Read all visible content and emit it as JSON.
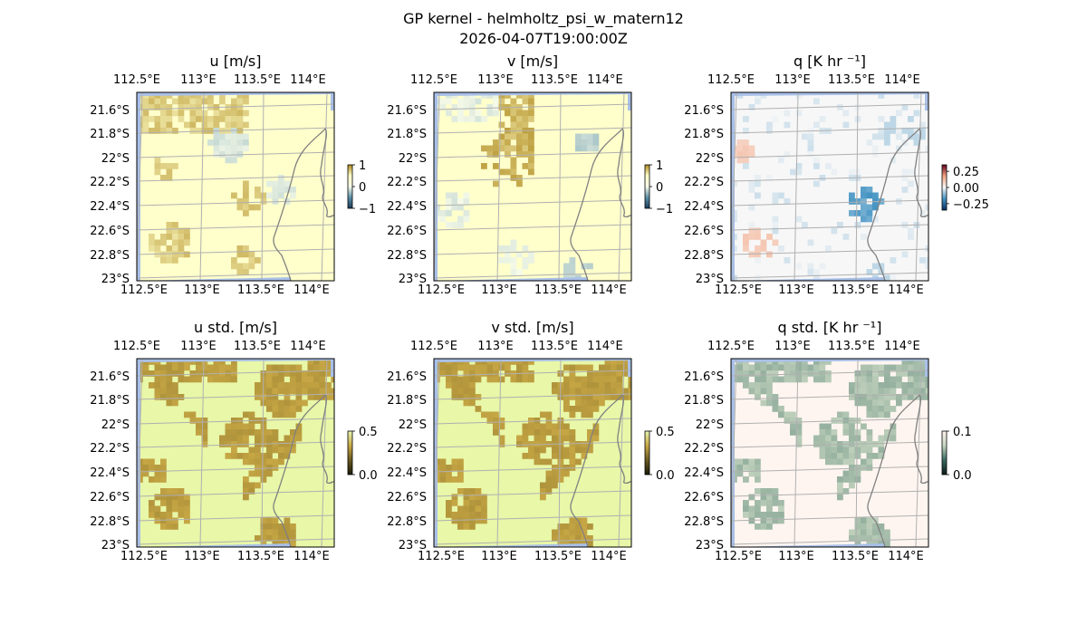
{
  "suptitle": {
    "line1": "GP kernel - helmholtz_psi_w_matern12",
    "line2": "2026-04-07T19:00:00Z"
  },
  "chart_data": [
    {
      "type": "heatmap",
      "title": "u [m/s]",
      "x_ticks": [
        "112.5°E",
        "113°E",
        "113.5°E",
        "114°E"
      ],
      "y_ticks": [
        "21.6°S",
        "21.8°S",
        "22°S",
        "22.2°S",
        "22.4°S",
        "22.6°S",
        "22.8°S",
        "23°S"
      ],
      "colorbar": {
        "range": [
          -1,
          1
        ],
        "ticks": [
          "1",
          "0",
          "−1"
        ]
      },
      "colormap": [
        "#1c3d5a",
        "#5b8fa8",
        "#f7fbe8",
        "#ffffc8",
        "#b08a20"
      ],
      "field_center": "#ffffcc"
    },
    {
      "type": "heatmap",
      "title": "v [m/s]",
      "x_ticks": [
        "112.5°E",
        "113°E",
        "113.5°E",
        "114°E"
      ],
      "y_ticks": [
        "21.6°S",
        "21.8°S",
        "22°S",
        "22.2°S",
        "22.4°S",
        "22.6°S",
        "22.8°S",
        "23°S"
      ],
      "colorbar": {
        "range": [
          -1,
          1
        ],
        "ticks": [
          "1",
          "0",
          "−1"
        ]
      },
      "colormap": [
        "#1c3d5a",
        "#5b8fa8",
        "#f7fbe8",
        "#ffffc8",
        "#b08a20"
      ],
      "field_center": "#ffffcc"
    },
    {
      "type": "heatmap",
      "title": "q [K hr ⁻¹]",
      "x_ticks": [
        "112.5°E",
        "113°E",
        "113.5°E",
        "114°E"
      ],
      "y_ticks": [
        "21.6°S",
        "21.8°S",
        "22°S",
        "22.2°S",
        "22.4°S",
        "22.6°S",
        "22.8°S",
        "23°S"
      ],
      "colorbar": {
        "range": [
          -0.35,
          0.35
        ],
        "ticks": [
          "0.25",
          "0.00",
          "−0.25"
        ]
      },
      "colormap": [
        "#053061",
        "#4393c3",
        "#f7f7f7",
        "#f4a582",
        "#67001f"
      ],
      "field_center": "#f7f7f7"
    },
    {
      "type": "heatmap",
      "title": "u std. [m/s]",
      "x_ticks": [
        "112.5°E",
        "113°E",
        "113.5°E",
        "114°E"
      ],
      "y_ticks": [
        "21.6°S",
        "21.8°S",
        "22°S",
        "22.2°S",
        "22.4°S",
        "22.6°S",
        "22.8°S",
        "23°S"
      ],
      "colorbar": {
        "range": [
          0,
          0.5
        ],
        "ticks": [
          "0.5",
          "0.0"
        ]
      },
      "colormap": [
        "#1a1a0a",
        "#6b5a20",
        "#c8a845",
        "#e8f5b0"
      ],
      "field_center": "#e8f7a8"
    },
    {
      "type": "heatmap",
      "title": "v std. [m/s]",
      "x_ticks": [
        "112.5°E",
        "113°E",
        "113.5°E",
        "114°E"
      ],
      "y_ticks": [
        "21.6°S",
        "21.8°S",
        "22°S",
        "22.2°S",
        "22.4°S",
        "22.6°S",
        "22.8°S",
        "23°S"
      ],
      "colorbar": {
        "range": [
          0,
          0.5
        ],
        "ticks": [
          "0.5",
          "0.0"
        ]
      },
      "colormap": [
        "#1a1a0a",
        "#6b5a20",
        "#c8a845",
        "#e8f5b0"
      ],
      "field_center": "#e8f7a8"
    },
    {
      "type": "heatmap",
      "title": "q std. [K hr ⁻¹]",
      "x_ticks": [
        "112.5°E",
        "113°E",
        "113.5°E",
        "114°E"
      ],
      "y_ticks": [
        "21.6°S",
        "21.8°S",
        "22°S",
        "22.2°S",
        "22.4°S",
        "22.6°S",
        "22.8°S",
        "23°S"
      ],
      "colorbar": {
        "range": [
          0,
          0.1
        ],
        "ticks": [
          "0.1",
          "0.0"
        ]
      },
      "colormap": [
        "#0a1a1a",
        "#3a6a60",
        "#c5d5c0",
        "#fff2ee"
      ],
      "field_center": "#fff5f0"
    }
  ]
}
